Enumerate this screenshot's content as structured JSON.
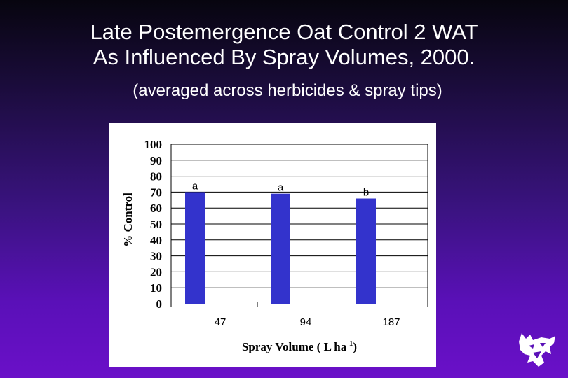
{
  "header": {
    "title_line1": "Late Postemergence Oat Control 2 WAT",
    "title_line2": "As Influenced By Spray Volumes, 2000.",
    "subtitle": "(averaged across herbicides & spray tips)"
  },
  "chart_data": {
    "type": "bar",
    "categories": [
      "47",
      "94",
      "187"
    ],
    "values": [
      70,
      69,
      66
    ],
    "bar_labels": [
      "a",
      "a",
      "b"
    ],
    "ylabel": "% Control",
    "xlabel": "Spray Volume ( L ha",
    "xlabel_sup": "-1",
    "xlabel_end": ")",
    "ylim": [
      0,
      100
    ],
    "yticks": [
      0,
      10,
      20,
      30,
      40,
      50,
      60,
      70,
      80,
      90,
      100
    ],
    "grid": true,
    "bar_color": "#3333cc"
  },
  "logo": {
    "icon": "wildcat-logo-icon"
  }
}
